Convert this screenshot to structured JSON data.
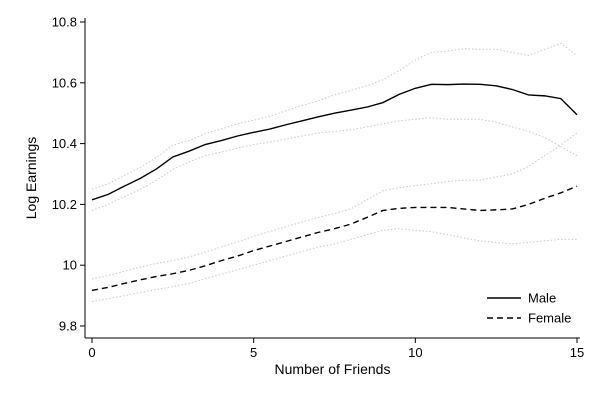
{
  "chart_data": {
    "type": "line",
    "title": "",
    "xlabel": "Number of Friends",
    "ylabel": "Log Earnings",
    "xlim": [
      0,
      15
    ],
    "ylim": [
      9.8,
      10.8
    ],
    "xticks": [
      0,
      5,
      10,
      15
    ],
    "xtick_labels": [
      "0",
      "5",
      "10",
      "15"
    ],
    "yticks": [
      9.8,
      10,
      10.2,
      10.4,
      10.6,
      10.8
    ],
    "ytick_labels": [
      "9.8",
      "10",
      "10.2",
      "10.4",
      "10.6",
      "10.8"
    ],
    "grid": false,
    "legend_position": "bottom-right",
    "series": [
      {
        "name": "Male",
        "style": "solid",
        "color": "#000000",
        "x": [
          0,
          0.5,
          1,
          1.5,
          2,
          2.5,
          3,
          3.5,
          4,
          4.5,
          5,
          5.5,
          6,
          6.5,
          7,
          7.5,
          8,
          8.5,
          9,
          9.5,
          10,
          10.5,
          11,
          11.5,
          12,
          12.5,
          13,
          13.5,
          14,
          14.5,
          15
        ],
        "values": [
          10.215,
          10.233,
          10.26,
          10.286,
          10.317,
          10.356,
          10.375,
          10.397,
          10.41,
          10.425,
          10.437,
          10.448,
          10.462,
          10.475,
          10.488,
          10.5,
          10.51,
          10.52,
          10.535,
          10.562,
          10.582,
          10.595,
          10.594,
          10.596,
          10.595,
          10.59,
          10.578,
          10.56,
          10.557,
          10.548,
          10.495
        ],
        "ci_lower": [
          10.18,
          10.2,
          10.225,
          10.25,
          10.28,
          10.315,
          10.34,
          10.36,
          10.372,
          10.385,
          10.397,
          10.405,
          10.415,
          10.425,
          10.435,
          10.44,
          10.445,
          10.455,
          10.465,
          10.475,
          10.48,
          10.485,
          10.48,
          10.48,
          10.48,
          10.47,
          10.455,
          10.44,
          10.42,
          10.39,
          10.36
        ],
        "ci_upper": [
          10.25,
          10.268,
          10.295,
          10.322,
          10.355,
          10.395,
          10.41,
          10.433,
          10.448,
          10.465,
          10.477,
          10.49,
          10.508,
          10.525,
          10.541,
          10.56,
          10.575,
          10.59,
          10.61,
          10.64,
          10.675,
          10.7,
          10.705,
          10.712,
          10.71,
          10.71,
          10.7,
          10.69,
          10.71,
          10.73,
          10.69
        ]
      },
      {
        "name": "Female",
        "style": "dashed",
        "color": "#000000",
        "x": [
          0,
          0.5,
          1,
          1.5,
          2,
          2.5,
          3,
          3.5,
          4,
          4.5,
          5,
          5.5,
          6,
          6.5,
          7,
          7.5,
          8,
          8.5,
          9,
          9.5,
          10,
          10.5,
          11,
          11.5,
          12,
          12.5,
          13,
          13.5,
          14,
          14.5,
          15
        ],
        "values": [
          9.917,
          9.927,
          9.94,
          9.952,
          9.963,
          9.972,
          9.983,
          9.998,
          10.015,
          10.03,
          10.048,
          10.063,
          10.078,
          10.093,
          10.108,
          10.12,
          10.135,
          10.157,
          10.18,
          10.187,
          10.19,
          10.19,
          10.19,
          10.185,
          10.18,
          10.182,
          10.185,
          10.2,
          10.22,
          10.238,
          10.26
        ],
        "ci_lower": [
          9.88,
          9.89,
          9.9,
          9.91,
          9.92,
          9.93,
          9.94,
          9.955,
          9.97,
          9.985,
          10.0,
          10.015,
          10.03,
          10.045,
          10.06,
          10.07,
          10.085,
          10.1,
          10.115,
          10.12,
          10.115,
          10.11,
          10.1,
          10.09,
          10.08,
          10.075,
          10.07,
          10.075,
          10.08,
          10.085,
          10.085
        ],
        "ci_upper": [
          9.955,
          9.966,
          9.98,
          9.994,
          10.006,
          10.015,
          10.027,
          10.043,
          10.06,
          10.076,
          10.095,
          10.111,
          10.127,
          10.142,
          10.157,
          10.17,
          10.185,
          10.215,
          10.245,
          10.255,
          10.262,
          10.268,
          10.275,
          10.28,
          10.28,
          10.29,
          10.3,
          10.325,
          10.36,
          10.395,
          10.435
        ]
      }
    ]
  }
}
